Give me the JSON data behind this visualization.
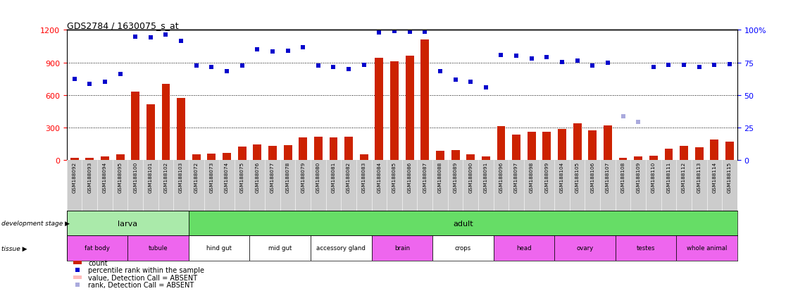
{
  "title": "GDS2784 / 1630075_s_at",
  "samples": [
    "GSM188092",
    "GSM188093",
    "GSM188094",
    "GSM188095",
    "GSM188100",
    "GSM188101",
    "GSM188102",
    "GSM188103",
    "GSM188072",
    "GSM188073",
    "GSM188074",
    "GSM188075",
    "GSM188076",
    "GSM188077",
    "GSM188078",
    "GSM188079",
    "GSM188080",
    "GSM188081",
    "GSM188082",
    "GSM188083",
    "GSM188084",
    "GSM188085",
    "GSM188086",
    "GSM188087",
    "GSM188088",
    "GSM188089",
    "GSM188090",
    "GSM188091",
    "GSM188096",
    "GSM188097",
    "GSM188098",
    "GSM188099",
    "GSM188104",
    "GSM188105",
    "GSM188106",
    "GSM188107",
    "GSM188108",
    "GSM188109",
    "GSM188110",
    "GSM188111",
    "GSM188112",
    "GSM188113",
    "GSM188114",
    "GSM188115"
  ],
  "counts": [
    20,
    15,
    30,
    50,
    630,
    510,
    700,
    570,
    50,
    55,
    60,
    120,
    140,
    130,
    135,
    205,
    215,
    205,
    215,
    50,
    940,
    910,
    960,
    1110,
    80,
    90,
    50,
    30,
    310,
    235,
    260,
    260,
    285,
    340,
    270,
    315,
    20,
    30,
    35,
    100,
    130,
    115,
    185,
    165
  ],
  "percentiles_left_scale": [
    750,
    700,
    720,
    790,
    1140,
    1130,
    1155,
    1100,
    870,
    855,
    820,
    870,
    1020,
    1000,
    1005,
    1040,
    870,
    855,
    840,
    880,
    1180,
    1190,
    1185,
    1185,
    820,
    740,
    720,
    670,
    970,
    960,
    935,
    950,
    905,
    915,
    870,
    895,
    400,
    350,
    860,
    875,
    880,
    855,
    875,
    885
  ],
  "absent_count_indices": [],
  "absent_rank_indices": [
    36,
    37
  ],
  "ylim_left": [
    0,
    1200
  ],
  "ylim_right": [
    0,
    100
  ],
  "yticks_left": [
    0,
    300,
    600,
    900,
    1200
  ],
  "yticks_right": [
    0,
    25,
    50,
    75,
    100
  ],
  "development_stages": [
    {
      "label": "larva",
      "start": 0,
      "end": 8,
      "color": "#AAEAAA"
    },
    {
      "label": "adult",
      "start": 8,
      "end": 44,
      "color": "#66DD66"
    }
  ],
  "tissues": [
    {
      "label": "fat body",
      "start": 0,
      "end": 4,
      "color": "#EE66EE"
    },
    {
      "label": "tubule",
      "start": 4,
      "end": 8,
      "color": "#EE66EE"
    },
    {
      "label": "hind gut",
      "start": 8,
      "end": 12,
      "color": "#FFFFFF"
    },
    {
      "label": "mid gut",
      "start": 12,
      "end": 16,
      "color": "#FFFFFF"
    },
    {
      "label": "accessory gland",
      "start": 16,
      "end": 20,
      "color": "#FFFFFF"
    },
    {
      "label": "brain",
      "start": 20,
      "end": 24,
      "color": "#EE66EE"
    },
    {
      "label": "crops",
      "start": 24,
      "end": 28,
      "color": "#FFFFFF"
    },
    {
      "label": "head",
      "start": 28,
      "end": 32,
      "color": "#EE66EE"
    },
    {
      "label": "ovary",
      "start": 32,
      "end": 36,
      "color": "#EE66EE"
    },
    {
      "label": "testes",
      "start": 36,
      "end": 40,
      "color": "#EE66EE"
    },
    {
      "label": "whole animal",
      "start": 40,
      "end": 44,
      "color": "#EE66EE"
    }
  ],
  "bar_color": "#CC2200",
  "dot_color": "#0000CC",
  "absent_dot_color": "#AAAADD",
  "absent_count_color": "#FFBBBB",
  "label_bg_color": "#CCCCCC",
  "fig_bg_color": "#FFFFFF",
  "bar_width": 0.55
}
